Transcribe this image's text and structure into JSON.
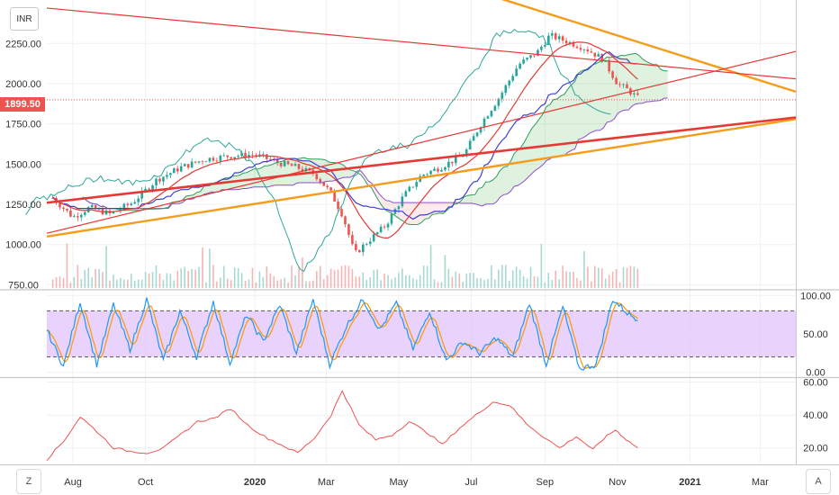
{
  "symbol_badge": "INR",
  "bottom_left_button": "Z",
  "bottom_right_button": "A",
  "last_price_label": "1899.50",
  "colors": {
    "up": "#26a69a",
    "down": "#ef5350",
    "ma_red": "#e53935",
    "ma_blue": "#3f3fd6",
    "trend_orange": "#f59c1a",
    "ichimoku_green": "#2e9e5b",
    "ichimoku_purple": "#8e4fc7",
    "stoch_k": "#2196f3",
    "stoch_d": "#ff9800",
    "stoch_band": "#e1c4fb",
    "osc_line": "#ef5350"
  },
  "chart_data": [
    {
      "type": "candlestick",
      "pane": "price",
      "y_ticks": [
        "2250.00",
        "2000.00",
        "1750.00",
        "1500.00",
        "1250.00",
        "1000.00",
        "750.00"
      ],
      "ylim": [
        730,
        2520
      ],
      "x_tick_labels": [
        "Aug",
        "Oct",
        "2020",
        "Mar",
        "May",
        "Jul",
        "Sep",
        "Nov",
        "2021",
        "Mar"
      ],
      "last_price": 1899.5,
      "close_path_points": [
        [
          "2019-07-15",
          1290
        ],
        [
          "2019-08-01",
          1170
        ],
        [
          "2019-08-15",
          1230
        ],
        [
          "2019-09-01",
          1190
        ],
        [
          "2019-09-20",
          1260
        ],
        [
          "2019-10-10",
          1400
        ],
        [
          "2019-10-31",
          1480
        ],
        [
          "2019-11-20",
          1530
        ],
        [
          "2019-12-10",
          1550
        ],
        [
          "2020-01-01",
          1560
        ],
        [
          "2020-01-20",
          1510
        ],
        [
          "2020-02-05",
          1480
        ],
        [
          "2020-02-20",
          1440
        ],
        [
          "2020-03-05",
          1320
        ],
        [
          "2020-03-15",
          1180
        ],
        [
          "2020-03-25",
          940
        ],
        [
          "2020-04-05",
          1020
        ],
        [
          "2020-04-20",
          1120
        ],
        [
          "2020-05-05",
          1300
        ],
        [
          "2020-05-20",
          1430
        ],
        [
          "2020-06-05",
          1480
        ],
        [
          "2020-06-25",
          1560
        ],
        [
          "2020-07-10",
          1760
        ],
        [
          "2020-07-25",
          1920
        ],
        [
          "2020-08-10",
          2120
        ],
        [
          "2020-08-25",
          2190
        ],
        [
          "2020-09-05",
          2300
        ],
        [
          "2020-09-20",
          2260
        ],
        [
          "2020-10-05",
          2220
        ],
        [
          "2020-10-20",
          2150
        ],
        [
          "2020-11-01",
          2000
        ],
        [
          "2020-11-10",
          1960
        ],
        [
          "2020-11-20",
          1899.5
        ]
      ],
      "trendlines": [
        {
          "color": "orange",
          "from": [
            "2019-07-10",
            1050
          ],
          "to": [
            "2021-03-31",
            1780
          ]
        },
        {
          "color": "red",
          "from": [
            "2019-07-10",
            1260
          ],
          "to": [
            "2021-03-31",
            1790
          ]
        },
        {
          "color": "orange",
          "from": [
            "2020-07-25",
            2530
          ],
          "to": [
            "2021-03-31",
            1950
          ]
        },
        {
          "color": "red",
          "from": [
            "2019-07-10",
            2470
          ],
          "to": [
            "2021-03-31",
            2030
          ]
        },
        {
          "color": "red",
          "from": [
            "2019-07-10",
            1070
          ],
          "to": [
            "2021-03-31",
            2200
          ]
        }
      ]
    },
    {
      "type": "line",
      "pane": "stochastic",
      "y_ticks": [
        "100.00",
        "50.00",
        "0.00"
      ],
      "ylim": [
        -5,
        105
      ],
      "band": [
        20,
        80
      ],
      "series_k_points": [
        [
          0,
          55
        ],
        [
          4,
          8
        ],
        [
          8,
          92
        ],
        [
          12,
          10
        ],
        [
          16,
          88
        ],
        [
          20,
          30
        ],
        [
          24,
          95
        ],
        [
          28,
          15
        ],
        [
          32,
          80
        ],
        [
          36,
          20
        ],
        [
          40,
          92
        ],
        [
          44,
          12
        ],
        [
          48,
          75
        ],
        [
          52,
          40
        ],
        [
          56,
          88
        ],
        [
          60,
          25
        ],
        [
          64,
          95
        ],
        [
          68,
          10
        ],
        [
          72,
          60
        ],
        [
          76,
          95
        ],
        [
          80,
          55
        ],
        [
          84,
          90
        ],
        [
          88,
          30
        ],
        [
          92,
          80
        ],
        [
          96,
          15
        ],
        [
          100,
          40
        ],
        [
          104,
          25
        ],
        [
          108,
          45
        ],
        [
          112,
          20
        ],
        [
          116,
          90
        ],
        [
          120,
          10
        ],
        [
          124,
          85
        ],
        [
          128,
          5
        ],
        [
          132,
          10
        ],
        [
          136,
          95
        ],
        [
          140,
          75
        ],
        [
          142,
          70
        ]
      ]
    },
    {
      "type": "line",
      "pane": "oscillator",
      "y_ticks": [
        "60.00",
        "40.00",
        "20.00"
      ],
      "ylim": [
        10,
        62
      ],
      "series_points": [
        [
          0,
          13
        ],
        [
          6,
          24
        ],
        [
          12,
          39
        ],
        [
          18,
          30
        ],
        [
          24,
          20
        ],
        [
          30,
          18
        ],
        [
          36,
          17
        ],
        [
          42,
          20
        ],
        [
          48,
          28
        ],
        [
          54,
          36
        ],
        [
          60,
          38
        ],
        [
          66,
          44
        ],
        [
          72,
          34
        ],
        [
          78,
          27
        ],
        [
          84,
          22
        ],
        [
          90,
          17
        ],
        [
          96,
          26
        ],
        [
          102,
          40
        ],
        [
          106,
          55
        ],
        [
          112,
          34
        ],
        [
          118,
          25
        ],
        [
          124,
          28
        ],
        [
          130,
          36
        ],
        [
          136,
          30
        ],
        [
          142,
          22
        ],
        [
          148,
          32
        ],
        [
          154,
          40
        ],
        [
          160,
          48
        ],
        [
          166,
          46
        ],
        [
          172,
          35
        ],
        [
          178,
          27
        ],
        [
          184,
          20
        ],
        [
          190,
          27
        ],
        [
          196,
          19
        ],
        [
          200,
          26
        ],
        [
          204,
          31
        ],
        [
          208,
          25
        ],
        [
          212,
          20
        ]
      ]
    }
  ]
}
